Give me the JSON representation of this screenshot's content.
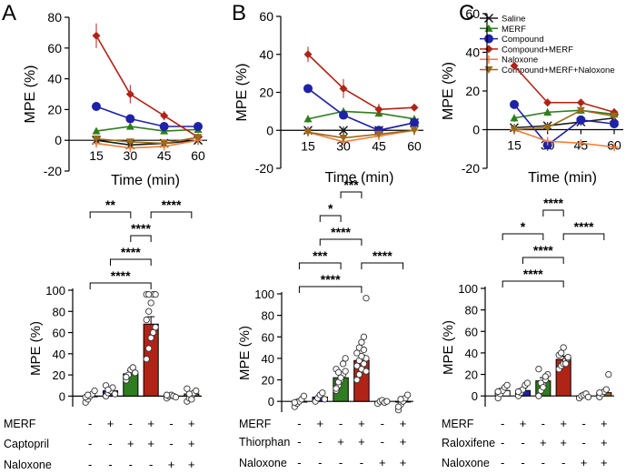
{
  "panel_labels": [
    "A",
    "B",
    "C"
  ],
  "colors": {
    "saline": "#1a1a1a",
    "merf": "#2e7d1e",
    "compound": "#1e22a6",
    "compound_merf": "#b02418",
    "naloxone": "#f07a3a",
    "compound_merf_naloxone": "#9a6a1a",
    "axis": "#000000"
  },
  "legend": {
    "items": [
      {
        "label": "Saline",
        "color": "#1a1a1a",
        "marker": "x"
      },
      {
        "label": "MERF",
        "color": "#2e7d1e",
        "marker": "triangle"
      },
      {
        "label": "Compound",
        "color": "#1e22a6",
        "marker": "circle"
      },
      {
        "label": "Compound+MERF",
        "color": "#b02418",
        "marker": "diamond"
      },
      {
        "label": "Naloxone",
        "color": "#f07a3a",
        "marker": "plus"
      },
      {
        "label": "Compound+MERF+Naloxone",
        "color": "#9a6a1a",
        "marker": "tri-down"
      }
    ]
  },
  "chart_data": [
    {
      "type": "line",
      "panel": "A",
      "ylabel": "MPE (%)",
      "xlabel": "Time (min)",
      "x": [
        15,
        30,
        45,
        60
      ],
      "ylim": [
        -20,
        80
      ],
      "yticks": [
        -20,
        0,
        20,
        40,
        60,
        80
      ],
      "series": [
        {
          "name": "Saline",
          "values": [
            0,
            -3,
            -2,
            0
          ],
          "err": [
            2,
            2,
            2,
            2
          ]
        },
        {
          "name": "MERF",
          "values": [
            6,
            9,
            6,
            7
          ],
          "err": [
            2,
            2,
            2,
            2
          ]
        },
        {
          "name": "Compound",
          "values": [
            22,
            14,
            9,
            9
          ],
          "err": [
            2,
            2,
            2,
            2
          ]
        },
        {
          "name": "Compound+MERF",
          "values": [
            68,
            30,
            16,
            2
          ],
          "err": [
            8,
            6,
            3,
            2
          ]
        },
        {
          "name": "Naloxone",
          "values": [
            -2,
            -5,
            -4,
            0
          ],
          "err": [
            2,
            2,
            2,
            2
          ]
        },
        {
          "name": "Compound+MERF+Naloxone",
          "values": [
            1,
            -1,
            -2,
            2
          ],
          "err": [
            2,
            2,
            2,
            2
          ]
        }
      ]
    },
    {
      "type": "line",
      "panel": "B",
      "ylabel": "MPE (%)",
      "xlabel": "Time (min)",
      "x": [
        15,
        30,
        45,
        60
      ],
      "ylim": [
        -20,
        60
      ],
      "yticks": [
        -20,
        0,
        20,
        40,
        60
      ],
      "series": [
        {
          "name": "Saline",
          "values": [
            0,
            0,
            0,
            4
          ],
          "err": [
            2,
            2,
            2,
            2
          ]
        },
        {
          "name": "MERF",
          "values": [
            6,
            10,
            9,
            6
          ],
          "err": [
            2,
            2,
            2,
            2
          ]
        },
        {
          "name": "Compound",
          "values": [
            22,
            8,
            0,
            4
          ],
          "err": [
            2,
            2,
            2,
            2
          ]
        },
        {
          "name": "Compound+MERF",
          "values": [
            40,
            22,
            11,
            12
          ],
          "err": [
            4,
            5,
            3,
            2
          ]
        },
        {
          "name": "Naloxone",
          "values": [
            -1,
            -6,
            -3,
            0
          ],
          "err": [
            2,
            2,
            2,
            2
          ]
        },
        {
          "name": "Compound+MERF+Naloxone",
          "values": [
            -1,
            -4,
            -2,
            0
          ],
          "err": [
            2,
            2,
            2,
            2
          ]
        }
      ]
    },
    {
      "type": "line",
      "panel": "C",
      "ylabel": "MPE (%)",
      "xlabel": "Time (min)",
      "x": [
        15,
        30,
        45,
        60
      ],
      "ylim": [
        -20,
        60
      ],
      "yticks": [
        -20,
        0,
        20,
        40,
        60
      ],
      "series": [
        {
          "name": "Saline",
          "values": [
            1,
            2,
            4,
            6
          ],
          "err": [
            2,
            2,
            2,
            2
          ]
        },
        {
          "name": "MERF",
          "values": [
            6,
            9,
            10,
            8
          ],
          "err": [
            2,
            2,
            2,
            2
          ]
        },
        {
          "name": "Compound",
          "values": [
            13,
            -8,
            5,
            3
          ],
          "err": [
            2,
            3,
            2,
            2
          ]
        },
        {
          "name": "Compound+MERF",
          "values": [
            33,
            14,
            14,
            9
          ],
          "err": [
            2,
            2,
            2,
            2
          ]
        },
        {
          "name": "Naloxone",
          "values": [
            0,
            -6,
            -7,
            -9
          ],
          "err": [
            2,
            2,
            2,
            2
          ]
        },
        {
          "name": "Compound+MERF+Naloxone",
          "values": [
            0,
            1,
            10,
            7
          ],
          "err": [
            2,
            2,
            2,
            2
          ]
        }
      ]
    },
    {
      "type": "bar",
      "panel": "A",
      "ylabel": "MPE (%)",
      "ylim": [
        -10,
        100
      ],
      "yticks": [
        0,
        20,
        40,
        60,
        80,
        100
      ],
      "values": [
        0,
        5,
        21,
        68,
        0,
        2
      ],
      "err": [
        2,
        2,
        3,
        7,
        1,
        2
      ],
      "bar_colors": [
        "#ffffff",
        "#1e22a6",
        "#2e7d1e",
        "#b02418",
        "#ffffff",
        "#9a6a1a"
      ],
      "points": [
        [
          -6,
          -3,
          0,
          2,
          5,
          -1,
          1
        ],
        [
          0,
          3,
          5,
          8,
          2,
          10,
          6
        ],
        [
          15,
          20,
          25,
          27,
          22,
          18
        ],
        [
          35,
          45,
          55,
          60,
          65,
          72,
          80,
          88,
          96,
          96,
          96,
          96
        ],
        [
          -2,
          0,
          1,
          0,
          -1,
          1
        ],
        [
          -5,
          -2,
          0,
          3,
          5,
          7,
          2,
          -3
        ]
      ],
      "conditions": [
        {
          "label": "MERF",
          "signs": [
            "-",
            "+",
            "-",
            "+",
            "-",
            "+"
          ]
        },
        {
          "label": "Captopril",
          "signs": [
            "-",
            "-",
            "+",
            "+",
            "-",
            "+"
          ]
        },
        {
          "label": "Naloxone",
          "signs": [
            "-",
            "-",
            "-",
            "-",
            "+",
            "+"
          ]
        }
      ],
      "significance": [
        {
          "from": 0,
          "to": 3,
          "label": "****"
        },
        {
          "from": 1,
          "to": 3,
          "label": "****"
        },
        {
          "from": 2,
          "to": 3,
          "label": "****"
        },
        {
          "from": 3,
          "to": 5,
          "label": "****"
        },
        {
          "from": 0,
          "to": 2,
          "label": "**"
        }
      ]
    },
    {
      "type": "bar",
      "panel": "B",
      "ylabel": "MPE (%)",
      "ylim": [
        -10,
        100
      ],
      "yticks": [
        0,
        20,
        40,
        60,
        80,
        100
      ],
      "values": [
        0,
        4,
        22,
        38,
        0,
        0
      ],
      "err": [
        2,
        2,
        4,
        5,
        1,
        2
      ],
      "bar_colors": [
        "#ffffff",
        "#1e22a6",
        "#2e7d1e",
        "#b02418",
        "#ffffff",
        "#9a6a1a"
      ],
      "points": [
        [
          -5,
          -2,
          0,
          2,
          5,
          -1
        ],
        [
          0,
          3,
          6,
          8,
          2
        ],
        [
          10,
          15,
          20,
          25,
          28,
          30,
          18,
          22,
          35,
          40,
          12,
          27
        ],
        [
          20,
          25,
          30,
          35,
          40,
          45,
          50,
          55,
          60,
          28,
          33,
          38,
          42,
          48,
          96
        ],
        [
          -2,
          0,
          1,
          -1,
          0
        ],
        [
          -8,
          -3,
          0,
          3,
          6,
          -5,
          2
        ]
      ],
      "conditions": [
        {
          "label": "MERF",
          "signs": [
            "-",
            "+",
            "-",
            "+",
            "-",
            "+"
          ]
        },
        {
          "label": "Thiorphan",
          "signs": [
            "-",
            "-",
            "+",
            "+",
            "-",
            "+"
          ]
        },
        {
          "label": "Naloxone",
          "signs": [
            "-",
            "-",
            "-",
            "-",
            "+",
            "+"
          ]
        }
      ],
      "significance": [
        {
          "from": 0,
          "to": 3,
          "label": "****"
        },
        {
          "from": 0,
          "to": 2,
          "label": "***"
        },
        {
          "from": 1,
          "to": 3,
          "label": "****"
        },
        {
          "from": 1,
          "to": 2,
          "label": "*"
        },
        {
          "from": 2,
          "to": 3,
          "label": "***"
        },
        {
          "from": 3,
          "to": 5,
          "label": "****"
        }
      ]
    },
    {
      "type": "bar",
      "panel": "C",
      "ylabel": "MPE (%)",
      "ylim": [
        -10,
        100
      ],
      "yticks": [
        0,
        20,
        40,
        60,
        80,
        100
      ],
      "values": [
        5,
        5,
        14,
        34,
        0,
        3
      ],
      "err": [
        2,
        2,
        3,
        3,
        1,
        2
      ],
      "bar_colors": [
        "#ffffff",
        "#1e22a6",
        "#2e7d1e",
        "#b02418",
        "#ffffff",
        "#9a6a1a"
      ],
      "points": [
        [
          -2,
          2,
          5,
          8,
          10,
          4
        ],
        [
          0,
          3,
          6,
          10,
          12,
          4
        ],
        [
          0,
          5,
          10,
          15,
          20,
          25,
          12,
          8,
          18
        ],
        [
          25,
          28,
          30,
          33,
          35,
          38,
          40,
          45,
          30,
          36
        ],
        [
          -2,
          0,
          1,
          2,
          -1
        ],
        [
          -1,
          2,
          4,
          6,
          20,
          3
        ]
      ],
      "conditions": [
        {
          "label": "MERF",
          "signs": [
            "-",
            "+",
            "-",
            "+",
            "-",
            "+"
          ]
        },
        {
          "label": "Raloxifene",
          "signs": [
            "-",
            "-",
            "+",
            "+",
            "-",
            "+"
          ]
        },
        {
          "label": "Naloxone",
          "signs": [
            "-",
            "-",
            "-",
            "-",
            "+",
            "+"
          ]
        }
      ],
      "significance": [
        {
          "from": 0,
          "to": 3,
          "label": "****"
        },
        {
          "from": 1,
          "to": 3,
          "label": "****"
        },
        {
          "from": 0,
          "to": 2,
          "label": "*"
        },
        {
          "from": 2,
          "to": 3,
          "label": "****"
        },
        {
          "from": 3,
          "to": 5,
          "label": "****"
        }
      ]
    }
  ]
}
